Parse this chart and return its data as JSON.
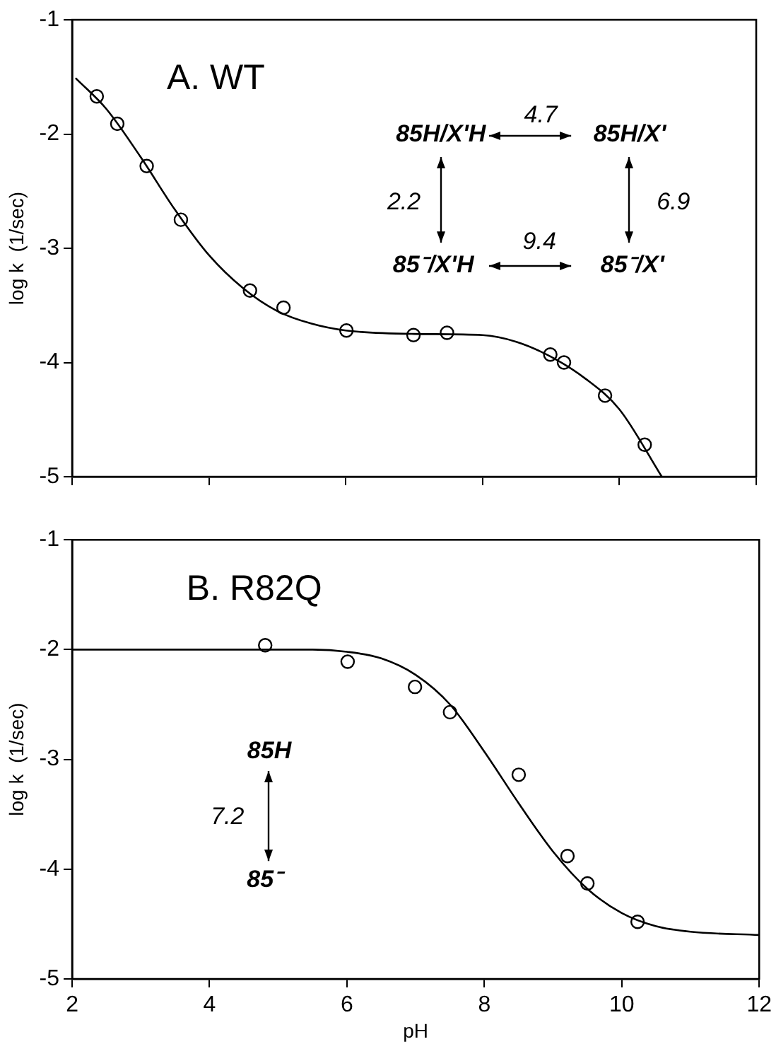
{
  "chart_data": [
    {
      "type": "scatter",
      "title": "A. WT",
      "ylabel": "log k  (1/sec)",
      "xlim": [
        2,
        12
      ],
      "xticks": [
        2,
        4,
        6,
        8,
        10,
        12
      ],
      "ylim": [
        -5,
        -1
      ],
      "yticks": [
        -5,
        -4,
        -3,
        -2,
        -1
      ],
      "tick_labels": "y",
      "grid": false,
      "legend": false,
      "annotations": [
        "85H/X'H",
        "85H/X'",
        "85⁻/X'H",
        "85⁻/X'",
        "4.7",
        "9.4",
        "2.2",
        "6.9"
      ],
      "series": [
        {
          "marker": "circle",
          "color": "#000000",
          "x": [
            2.36,
            2.66,
            3.09,
            3.59,
            4.6,
            5.09,
            6.01,
            6.99,
            7.48,
            8.99,
            9.19,
            9.79,
            10.37
          ],
          "values": [
            -1.67,
            -1.91,
            -2.28,
            -2.75,
            -3.37,
            -3.52,
            -3.72,
            -3.76,
            -3.74,
            -3.93,
            -4.0,
            -4.29,
            -4.72
          ]
        },
        {
          "type": "line",
          "color": "#000000",
          "line_style": "solid",
          "x": [
            2.05,
            2.5,
            3,
            3.5,
            4,
            4.5,
            5,
            5.5,
            6,
            7,
            8,
            8.5,
            9,
            9.5,
            10,
            10.62
          ],
          "values": [
            -1.51,
            -1.78,
            -2.2,
            -2.66,
            -3.06,
            -3.35,
            -3.55,
            -3.66,
            -3.72,
            -3.75,
            -3.76,
            -3.82,
            -3.95,
            -4.14,
            -4.41,
            -5.0
          ]
        }
      ]
    },
    {
      "type": "scatter",
      "title": "B. R82Q",
      "xlabel": "pH",
      "ylabel": "log k  (1/sec)",
      "xlim": [
        2,
        12
      ],
      "xticks": [
        2,
        4,
        6,
        8,
        10,
        12
      ],
      "ylim": [
        -5,
        -1
      ],
      "yticks": [
        -5,
        -4,
        -3,
        -2,
        -1
      ],
      "grid": false,
      "legend": false,
      "annotations": [
        "85H",
        "85⁻",
        "7.2"
      ],
      "series": [
        {
          "marker": "circle",
          "color": "#000000",
          "x": [
            4.81,
            6.01,
            6.99,
            7.5,
            8.5,
            9.21,
            9.5,
            10.23
          ],
          "values": [
            -1.96,
            -2.11,
            -2.34,
            -2.57,
            -3.14,
            -3.88,
            -4.13,
            -4.48
          ]
        },
        {
          "type": "line",
          "color": "#000000",
          "line_style": "solid",
          "x": [
            2,
            5.5,
            6,
            6.5,
            7,
            7.5,
            8,
            8.5,
            9,
            9.5,
            10,
            10.5,
            11,
            12
          ],
          "values": [
            -2.0,
            -2.0,
            -2.02,
            -2.08,
            -2.23,
            -2.5,
            -2.93,
            -3.4,
            -3.84,
            -4.18,
            -4.4,
            -4.52,
            -4.57,
            -4.6
          ]
        }
      ]
    }
  ]
}
